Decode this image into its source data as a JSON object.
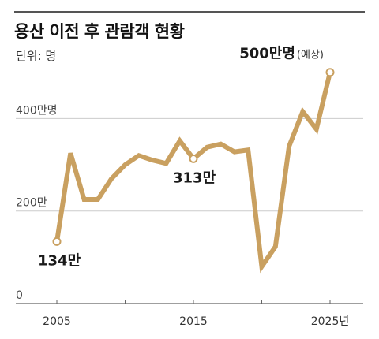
{
  "title": "용산 이전 후 관람객 현황",
  "unit_label": "단위: 명",
  "colors": {
    "line": "#c9a060",
    "axis": "#666666",
    "grid": "#cccccc"
  },
  "chart_data": {
    "type": "line",
    "title": "용산 이전 후 관람객 현황",
    "ylim": [
      0,
      520
    ],
    "xlim": [
      2005,
      2026
    ],
    "yticks": [
      {
        "value": 0,
        "label": "0"
      },
      {
        "value": 200,
        "label": "200만"
      },
      {
        "value": 400,
        "label": "400만명"
      }
    ],
    "xticks": [
      {
        "value": 2005,
        "label": "2005"
      },
      {
        "value": 2015,
        "label": "2015"
      },
      {
        "value": 2025,
        "label": "2025년"
      }
    ],
    "grid": true,
    "x": [
      2005,
      2006,
      2007,
      2008,
      2009,
      2010,
      2011,
      2012,
      2013,
      2014,
      2015,
      2016,
      2017,
      2018,
      2019,
      2020,
      2021,
      2022,
      2023,
      2024,
      2025
    ],
    "series": [
      {
        "values": [
          134,
          325,
          225,
          225,
          270,
          300,
          320,
          310,
          303,
          352,
          313,
          338,
          345,
          328,
          332,
          80,
          123,
          340,
          415,
          377,
          500
        ]
      }
    ],
    "annotations": [
      {
        "x": 2005,
        "y": 134,
        "label": "134만",
        "note": ""
      },
      {
        "x": 2015,
        "y": 313,
        "label": "313만",
        "note": ""
      },
      {
        "x": 2025,
        "y": 500,
        "label": "500만명",
        "note": "(예상)"
      }
    ]
  }
}
